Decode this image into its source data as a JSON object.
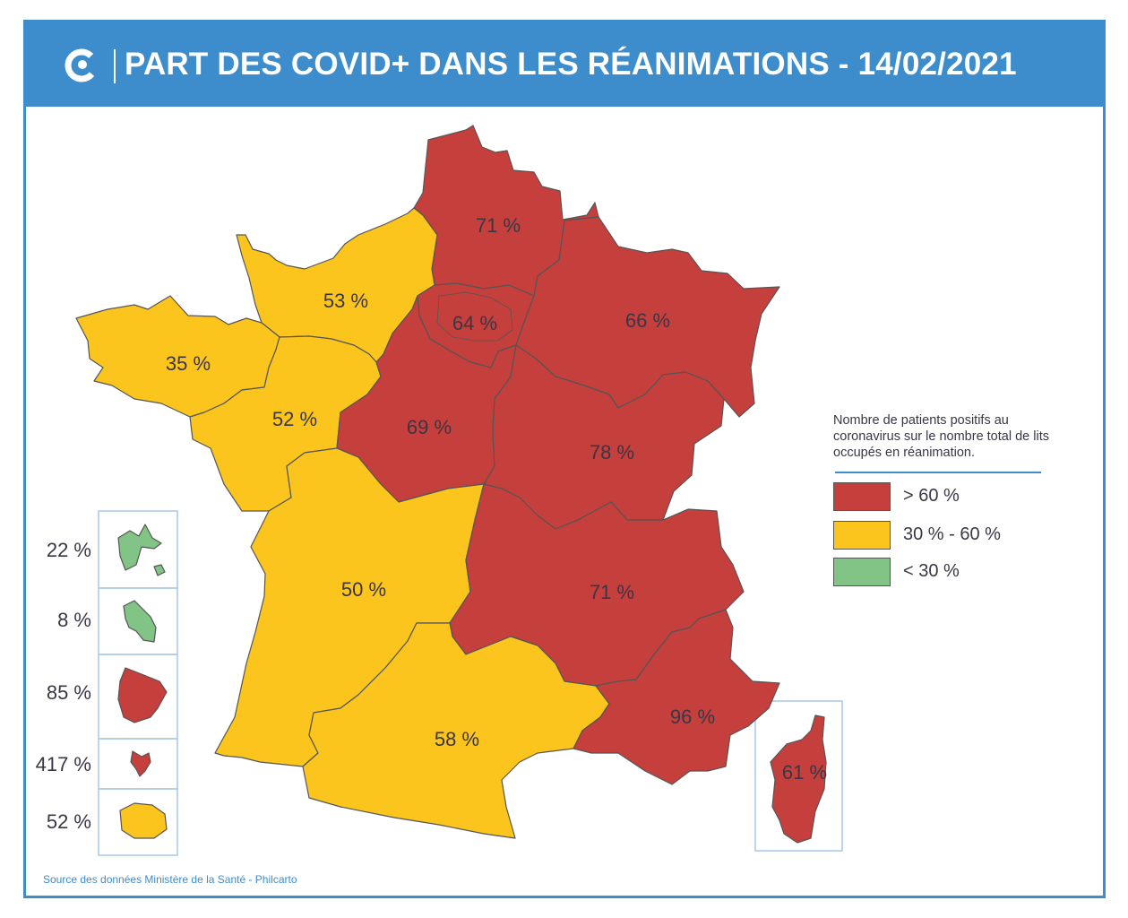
{
  "title": "PART DES COVID+ DANS LES RÉANIMATIONS - 14/02/2021",
  "colors": {
    "high": "#c53f3c",
    "mid": "#fcc51d",
    "low": "#82c485",
    "border": "#555555",
    "accent": "#3d8ccb"
  },
  "regions": [
    {
      "name": "Hauts-de-France",
      "value": "71 %",
      "category": "high"
    },
    {
      "name": "Normandie",
      "value": "53 %",
      "category": "mid"
    },
    {
      "name": "Île-de-France",
      "value": "64 %",
      "category": "high"
    },
    {
      "name": "Grand Est",
      "value": "66 %",
      "category": "high"
    },
    {
      "name": "Bretagne",
      "value": "35 %",
      "category": "mid"
    },
    {
      "name": "Pays de la Loire",
      "value": "52 %",
      "category": "mid"
    },
    {
      "name": "Centre-Val de Loire",
      "value": "69 %",
      "category": "high"
    },
    {
      "name": "Bourgogne-Franche-Comté",
      "value": "78 %",
      "category": "high"
    },
    {
      "name": "Nouvelle-Aquitaine",
      "value": "50 %",
      "category": "mid"
    },
    {
      "name": "Auvergne-Rhône-Alpes",
      "value": "71 %",
      "category": "high"
    },
    {
      "name": "Occitanie",
      "value": "58 %",
      "category": "mid"
    },
    {
      "name": "Provence-Alpes-Côte d'Azur",
      "value": "96 %",
      "category": "high"
    },
    {
      "name": "Corse",
      "value": "61 %",
      "category": "high"
    }
  ],
  "overseas": [
    {
      "name": "Guadeloupe",
      "value": "22 %",
      "category": "low"
    },
    {
      "name": "Martinique",
      "value": "8 %",
      "category": "low"
    },
    {
      "name": "Guyane",
      "value": "85 %",
      "category": "high"
    },
    {
      "name": "Mayotte",
      "value": "417 %",
      "category": "high"
    },
    {
      "name": "La Réunion",
      "value": "52 %",
      "category": "mid"
    }
  ],
  "legend": {
    "description": "Nombre de patients positifs au coronavirus sur le nombre total de lits occupés en réanimation.",
    "items": [
      {
        "label": "> 60 %",
        "category": "high"
      },
      {
        "label": "30 % - 60 %",
        "category": "mid"
      },
      {
        "label": "< 30 %",
        "category": "low"
      }
    ]
  },
  "source": "Source des données Ministère de la Santé - Philcarto"
}
